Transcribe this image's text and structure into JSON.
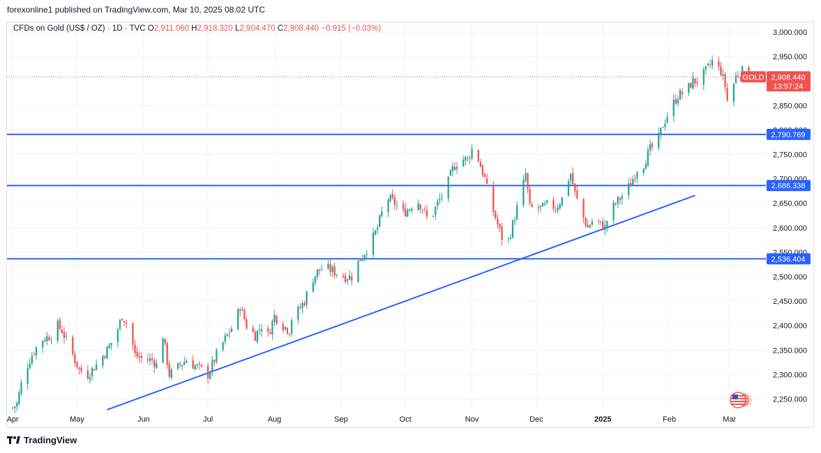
{
  "header": {
    "published": "forexonline1 published on TradingView.com, Mar 10, 2025 08:02 UTC"
  },
  "legend": {
    "symbol": "CFDs on Gold (US$ / OZ) · 1D · TVC",
    "o_label": "O",
    "o_value": "2,911.060",
    "h_label": "H",
    "h_value": "2,918.320",
    "l_label": "L",
    "l_value": "2,904.470",
    "c_label": "C",
    "c_value": "2,908.440",
    "change": "−0.915 (−0.03%)"
  },
  "price_tag": {
    "label": "GOLD",
    "price": "2,908.440",
    "countdown": "13:57:24"
  },
  "footer": {
    "brand": "TradingView"
  },
  "colors": {
    "up": "#26a69a",
    "down": "#ef5350",
    "line": "#2962ff",
    "tag": "#ef5350"
  },
  "chart_data": {
    "type": "candlestick",
    "title": "CFDs on Gold (US$ / OZ) · 1D · TVC",
    "ylim": [
      2225,
      3020
    ],
    "y_ticks": [
      {
        "v": 3000,
        "label": "3,000.000"
      },
      {
        "v": 2950,
        "label": "2,950.000"
      },
      {
        "v": 2850,
        "label": "2,850.000"
      },
      {
        "v": 2800,
        "label": "2,800.000"
      },
      {
        "v": 2750,
        "label": "2,750.000"
      },
      {
        "v": 2700,
        "label": "2,700.000"
      },
      {
        "v": 2650,
        "label": "2,650.000"
      },
      {
        "v": 2600,
        "label": "2,600.000"
      },
      {
        "v": 2550,
        "label": "2,550.000"
      },
      {
        "v": 2500,
        "label": "2,500.000"
      },
      {
        "v": 2450,
        "label": "2,450.000"
      },
      {
        "v": 2400,
        "label": "2,400.000"
      },
      {
        "v": 2350,
        "label": "2,350.000"
      },
      {
        "v": 2300,
        "label": "2,300.000"
      },
      {
        "v": 2250,
        "label": "2,250.000"
      }
    ],
    "x_ticks": [
      {
        "d": 0,
        "label": "Apr"
      },
      {
        "d": 30,
        "label": "May"
      },
      {
        "d": 61,
        "label": "Jun"
      },
      {
        "d": 91,
        "label": "Jul"
      },
      {
        "d": 122,
        "label": "Aug"
      },
      {
        "d": 153,
        "label": "Sep"
      },
      {
        "d": 183,
        "label": "Oct"
      },
      {
        "d": 214,
        "label": "Nov"
      },
      {
        "d": 244,
        "label": "Dec"
      },
      {
        "d": 275,
        "label": "2025",
        "bold": true
      },
      {
        "d": 306,
        "label": "Feb"
      },
      {
        "d": 334,
        "label": "Mar"
      }
    ],
    "x_range_days": [
      -2,
      350
    ],
    "horizontal_levels": [
      {
        "price": 2790.769,
        "label": "2,790.769"
      },
      {
        "price": 2686.338,
        "label": "2,686.338"
      },
      {
        "price": 2536.404,
        "label": "2,536.404"
      }
    ],
    "trendline": {
      "start": {
        "d": 44,
        "price": 2228
      },
      "end": {
        "d": 318,
        "price": 2666
      }
    },
    "last_price": 2908.44,
    "anchors": [
      [
        0,
        2232
      ],
      [
        2,
        2240
      ],
      [
        5,
        2300
      ],
      [
        9,
        2340
      ],
      [
        13,
        2370
      ],
      [
        18,
        2380
      ],
      [
        20,
        2405
      ],
      [
        23,
        2390
      ],
      [
        27,
        2350
      ],
      [
        31,
        2310
      ],
      [
        35,
        2300
      ],
      [
        39,
        2320
      ],
      [
        44,
        2350
      ],
      [
        48,
        2380
      ],
      [
        51,
        2420
      ],
      [
        54,
        2400
      ],
      [
        57,
        2340
      ],
      [
        61,
        2330
      ],
      [
        65,
        2330
      ],
      [
        67,
        2320
      ],
      [
        70,
        2380
      ],
      [
        73,
        2300
      ],
      [
        76,
        2310
      ],
      [
        78,
        2320
      ],
      [
        81,
        2330
      ],
      [
        84,
        2320
      ],
      [
        88,
        2310
      ],
      [
        91,
        2300
      ],
      [
        93,
        2320
      ],
      [
        96,
        2350
      ],
      [
        100,
        2380
      ],
      [
        104,
        2410
      ],
      [
        106,
        2440
      ],
      [
        109,
        2400
      ],
      [
        113,
        2380
      ],
      [
        116,
        2400
      ],
      [
        119,
        2380
      ],
      [
        122,
        2420
      ],
      [
        126,
        2400
      ],
      [
        129,
        2390
      ],
      [
        131,
        2440
      ],
      [
        133,
        2430
      ],
      [
        136,
        2450
      ],
      [
        139,
        2490
      ],
      [
        142,
        2510
      ],
      [
        145,
        2520
      ],
      [
        150,
        2510
      ],
      [
        155,
        2500
      ],
      [
        158,
        2500
      ],
      [
        161,
        2530
      ],
      [
        164,
        2550
      ],
      [
        167,
        2570
      ],
      [
        170,
        2600
      ],
      [
        172,
        2630
      ],
      [
        175,
        2660
      ],
      [
        178,
        2650
      ],
      [
        182,
        2630
      ],
      [
        185,
        2640
      ],
      [
        188,
        2660
      ],
      [
        191,
        2640
      ],
      [
        194,
        2610
      ],
      [
        198,
        2650
      ],
      [
        202,
        2680
      ],
      [
        205,
        2720
      ],
      [
        208,
        2740
      ],
      [
        212,
        2740
      ],
      [
        214,
        2760
      ],
      [
        217,
        2740
      ],
      [
        220,
        2700
      ],
      [
        222,
        2660
      ],
      [
        225,
        2620
      ],
      [
        228,
        2580
      ],
      [
        230,
        2560
      ],
      [
        232,
        2590
      ],
      [
        235,
        2640
      ],
      [
        237,
        2670
      ],
      [
        239,
        2710
      ],
      [
        241,
        2640
      ],
      [
        244,
        2640
      ],
      [
        247,
        2640
      ],
      [
        250,
        2650
      ],
      [
        253,
        2640
      ],
      [
        256,
        2660
      ],
      [
        258,
        2690
      ],
      [
        260,
        2710
      ],
      [
        262,
        2670
      ],
      [
        265,
        2630
      ],
      [
        268,
        2600
      ],
      [
        271,
        2620
      ],
      [
        273,
        2610
      ],
      [
        276,
        2600
      ],
      [
        278,
        2630
      ],
      [
        281,
        2650
      ],
      [
        285,
        2670
      ],
      [
        288,
        2690
      ],
      [
        291,
        2720
      ],
      [
        294,
        2730
      ],
      [
        297,
        2760
      ],
      [
        300,
        2770
      ],
      [
        303,
        2810
      ],
      [
        306,
        2840
      ],
      [
        310,
        2870
      ],
      [
        314,
        2880
      ],
      [
        317,
        2900
      ],
      [
        320,
        2900
      ],
      [
        323,
        2920
      ],
      [
        326,
        2940
      ],
      [
        328,
        2930
      ],
      [
        330,
        2920
      ],
      [
        332,
        2890
      ],
      [
        333,
        2860
      ],
      [
        335,
        2880
      ],
      [
        337,
        2910
      ],
      [
        340,
        2920
      ],
      [
        343,
        2911
      ]
    ]
  }
}
